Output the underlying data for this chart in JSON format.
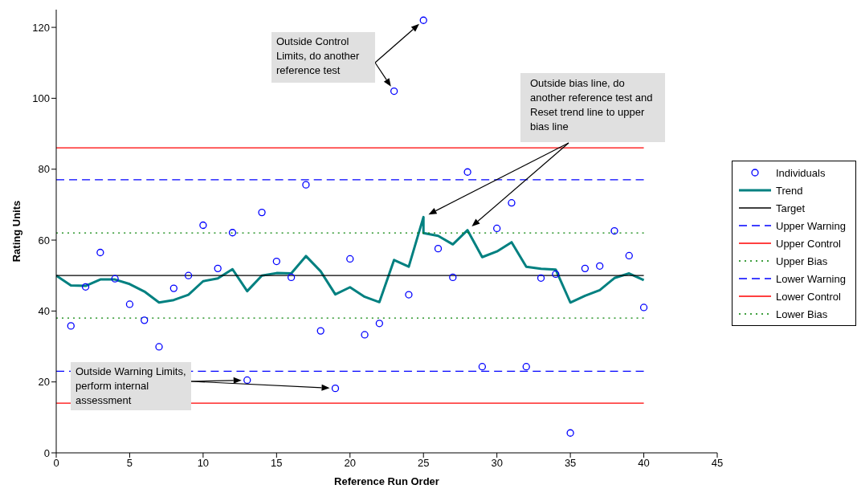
{
  "chart_data": {
    "type": "scatter",
    "xlabel": "Reference Run Order",
    "ylabel": "Rating Units",
    "xlim": [
      0,
      45
    ],
    "xticks": [
      0,
      5,
      10,
      15,
      20,
      25,
      30,
      35,
      40,
      45
    ],
    "ylim": [
      0,
      125
    ],
    "yticks": [
      0,
      20,
      40,
      60,
      80,
      100,
      120
    ],
    "legend": "right",
    "series": [
      {
        "name": "Individuals",
        "marker": "circle",
        "color": "#0000ff",
        "x": [
          1,
          2,
          3,
          4,
          5,
          6,
          7,
          8,
          9,
          10,
          11,
          12,
          13,
          14,
          15,
          16,
          17,
          18,
          19,
          20,
          21,
          22,
          23,
          24,
          25,
          26,
          27,
          28,
          29,
          30,
          31,
          32,
          33,
          34,
          35,
          36,
          37,
          38,
          39,
          40
        ],
        "values": [
          35.8,
          46.8,
          56.5,
          49.1,
          41.9,
          37.4,
          29.9,
          46.4,
          50.0,
          64.2,
          52.0,
          62.1,
          20.5,
          67.8,
          54.0,
          49.5,
          75.6,
          34.4,
          18.2,
          54.7,
          33.3,
          36.5,
          102,
          44.6,
          122,
          57.6,
          49.5,
          79.2,
          24.3,
          63.3,
          70.5,
          24.3,
          49.3,
          50.4,
          5.6,
          52.0,
          52.7,
          62.6,
          55.6,
          41.0
        ]
      },
      {
        "name": "Trend",
        "type": "line",
        "marker": "none",
        "line_style": "solid",
        "color": "#008080",
        "x": [
          0,
          1,
          2,
          3,
          4,
          5,
          6,
          7,
          8,
          9,
          10,
          11,
          12,
          13,
          14,
          15,
          16,
          17,
          18,
          19,
          20,
          21,
          22,
          23,
          24,
          25,
          25,
          26,
          27,
          28,
          29,
          30,
          31,
          32,
          33,
          34,
          35,
          36,
          37,
          38,
          39,
          40
        ],
        "values": [
          50.0,
          47.2,
          47.1,
          48.9,
          48.9,
          47.6,
          45.5,
          42.4,
          43.1,
          44.6,
          48.4,
          49.2,
          51.8,
          45.6,
          50.0,
          50.7,
          50.6,
          55.5,
          51.2,
          44.7,
          46.7,
          44.0,
          42.5,
          54.4,
          52.5,
          66.5,
          62.0,
          61.2,
          58.8,
          62.8,
          55.2,
          56.8,
          59.4,
          52.5,
          51.9,
          51.7,
          42.4,
          44.3,
          45.9,
          49.3,
          50.6,
          48.7
        ]
      },
      {
        "name": "Target",
        "type": "line",
        "marker": "none",
        "line_style": "solid",
        "color": "#000000",
        "x": [
          0,
          40
        ],
        "values": [
          50,
          50
        ]
      },
      {
        "name": "Upper Warning",
        "type": "line",
        "marker": "none",
        "line_style": "dashed",
        "color": "#0000ff",
        "x": [
          0,
          40
        ],
        "values": [
          77,
          77
        ]
      },
      {
        "name": "Upper Control",
        "type": "line",
        "marker": "none",
        "line_style": "solid",
        "color": "#ff0000",
        "x": [
          0,
          40
        ],
        "values": [
          86,
          86
        ]
      },
      {
        "name": "Upper Bias",
        "type": "line",
        "marker": "none",
        "line_style": "dotted",
        "color": "#008000",
        "x": [
          0,
          40
        ],
        "values": [
          62,
          62
        ]
      },
      {
        "name": "Lower Warning",
        "type": "line",
        "marker": "none",
        "line_style": "dashed",
        "color": "#0000ff",
        "x": [
          0,
          40
        ],
        "values": [
          23,
          23
        ]
      },
      {
        "name": "Lower Control",
        "type": "line",
        "marker": "none",
        "line_style": "solid",
        "color": "#ff0000",
        "x": [
          0,
          40
        ],
        "values": [
          14,
          14
        ]
      },
      {
        "name": "Lower Bias",
        "type": "line",
        "marker": "none",
        "line_style": "dotted",
        "color": "#008000",
        "x": [
          0,
          40
        ],
        "values": [
          38,
          38
        ]
      }
    ],
    "annotations": [
      "Outside Control Limits, do another reference test",
      "Outside bias line, do another reference test and Reset trend line to upper bias line",
      "Outside Warning Limits, perform internal assessment"
    ]
  }
}
